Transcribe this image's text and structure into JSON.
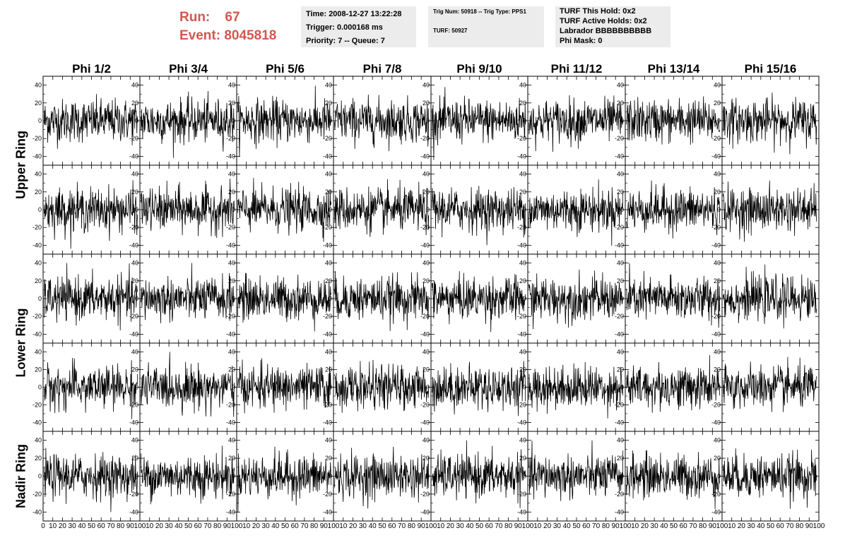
{
  "run": {
    "run_label": "Run:",
    "run_value": "67",
    "event_label": "Event:",
    "event_value": "8045818"
  },
  "time_box": {
    "time": "Time: 2008-12-27 13:22:28",
    "trigger": "Trigger: 0.000168 ms",
    "priority": "Priority: 7 -- Queue: 7"
  },
  "trig_box": {
    "trig": "Trig Num: 50918 -- Trig Type: PPS1",
    "turf": "TURF: 50927"
  },
  "turf_box": {
    "this_hold": "TURF This Hold: 0x2",
    "active_holds": "TURF Active Holds: 0x2",
    "labrador": "Labrador BBBBBBBBBB",
    "phi_mask": "Phi Mask: 0"
  },
  "columns": [
    "Phi 1/2",
    "Phi 3/4",
    "Phi 5/6",
    "Phi 7/8",
    "Phi 9/10",
    "Phi 11/12",
    "Phi 13/14",
    "Phi 15/16"
  ],
  "rows": [
    "Upper Ring",
    "Lower Ring",
    "Nadir Ring"
  ],
  "axes": {
    "y_ticks": [
      "40",
      "20",
      "0",
      "-20",
      "-40"
    ],
    "x_ticks_first": [
      "0",
      "10",
      "20",
      "30",
      "40",
      "50",
      "60",
      "70",
      "80",
      "90",
      "100"
    ],
    "x_ticks_other": [
      "10",
      "20",
      "30",
      "40",
      "50",
      "60",
      "70",
      "80",
      "90",
      "100"
    ],
    "x_range": [
      0,
      100
    ],
    "y_range": [
      -50,
      50
    ]
  },
  "chart_data": {
    "type": "line",
    "title": "",
    "xlabel": "",
    "ylabel": "",
    "xlim": [
      0,
      100
    ],
    "ylim": [
      -50,
      50
    ],
    "grid": false,
    "panels_note": "40 waveform panels (5 rows x 8 columns), each a noise trace oscillating about 0 with amplitude up to ~40"
  }
}
